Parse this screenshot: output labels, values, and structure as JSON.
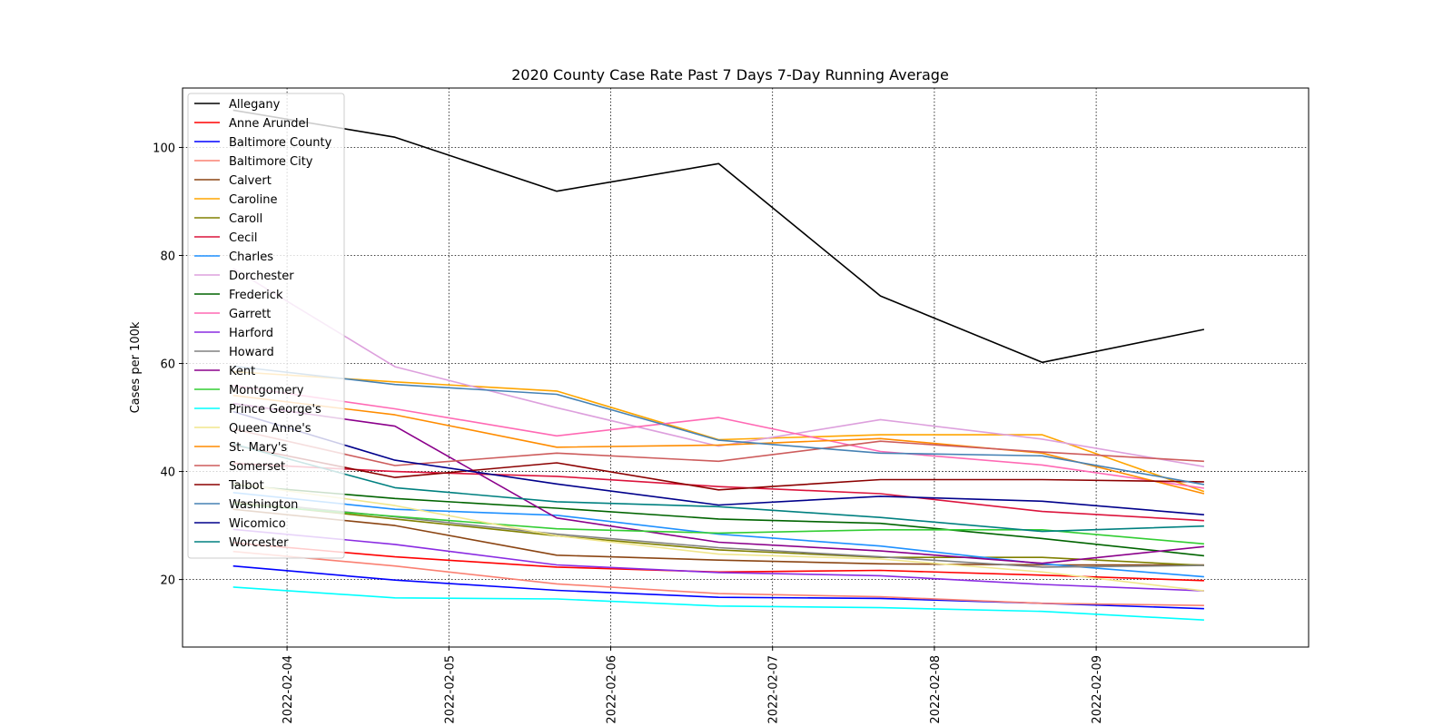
{
  "chart_data": {
    "type": "line",
    "title": "2020 County Case Rate  Past 7 Days 7-Day Running Average",
    "xlabel": "",
    "ylabel": "Cases per 100k",
    "x": [
      "2022-02-03 16:00",
      "2022-02-04 16:00",
      "2022-02-05 16:00",
      "2022-02-06 16:00",
      "2022-02-07 16:00",
      "2022-02-08 16:00",
      "2022-02-09 16:00"
    ],
    "x_ticks": [
      "2022-02-04",
      "2022-02-05",
      "2022-02-06",
      "2022-02-07",
      "2022-02-08",
      "2022-02-09"
    ],
    "xlim": [
      "2022-02-03 08:30",
      "2022-02-10 07:30"
    ],
    "y_ticks": [
      20,
      40,
      60,
      80,
      100
    ],
    "ylim": [
      7.5,
      111
    ],
    "grid": true,
    "legend_position": "upper left",
    "series": [
      {
        "name": "Allegany",
        "color": "#000000",
        "values": [
          106.9,
          101.9,
          91.9,
          97.0,
          72.5,
          60.2,
          66.3
        ]
      },
      {
        "name": "Anne Arundel",
        "color": "#ff0000",
        "values": [
          26.8,
          24.2,
          22.3,
          21.4,
          21.7,
          20.8,
          19.8
        ]
      },
      {
        "name": "Baltimore County",
        "color": "#0000ff",
        "values": [
          22.5,
          19.9,
          18.0,
          16.7,
          16.5,
          15.6,
          14.6
        ]
      },
      {
        "name": "Baltimore City",
        "color": "#fa8072",
        "values": [
          25.2,
          22.5,
          19.2,
          17.4,
          16.8,
          15.6,
          15.2
        ]
      },
      {
        "name": "Calvert",
        "color": "#8b4513",
        "values": [
          33.0,
          30.0,
          24.5,
          23.6,
          22.9,
          22.7,
          22.7
        ]
      },
      {
        "name": "Caroline",
        "color": "#ffa500",
        "values": [
          58.5,
          56.6,
          54.9,
          45.9,
          46.8,
          46.8,
          36.3
        ]
      },
      {
        "name": "Caroll",
        "color": "#808000",
        "values": [
          34.3,
          31.2,
          28.1,
          25.5,
          24.1,
          24.1,
          22.6
        ]
      },
      {
        "name": "Cecil",
        "color": "#dc143c",
        "values": [
          41.5,
          40.0,
          39.1,
          37.2,
          35.9,
          32.6,
          30.9
        ]
      },
      {
        "name": "Charles",
        "color": "#1e90ff",
        "values": [
          36.1,
          33.0,
          31.9,
          28.4,
          26.2,
          22.9,
          20.5
        ]
      },
      {
        "name": "Dorchester",
        "color": "#dda0dd",
        "values": [
          77.6,
          59.4,
          51.8,
          44.7,
          49.6,
          46.0,
          40.9
        ]
      },
      {
        "name": "Frederick",
        "color": "#006400",
        "values": [
          37.5,
          35.0,
          33.2,
          31.2,
          30.4,
          27.6,
          24.4
        ]
      },
      {
        "name": "Garrett",
        "color": "#ff69b4",
        "values": [
          55.9,
          51.6,
          46.6,
          50.0,
          43.7,
          41.2,
          36.9
        ]
      },
      {
        "name": "Harford",
        "color": "#8a2be2",
        "values": [
          29.3,
          26.5,
          22.7,
          21.3,
          20.7,
          19.1,
          17.9
        ]
      },
      {
        "name": "Howard",
        "color": "#808080",
        "values": [
          34.6,
          31.6,
          28.4,
          25.9,
          24.2,
          22.3,
          22.6
        ]
      },
      {
        "name": "Kent",
        "color": "#8b008b",
        "values": [
          52.6,
          48.4,
          31.4,
          26.9,
          25.3,
          23.0,
          26.1
        ]
      },
      {
        "name": "Montgomery",
        "color": "#32cd32",
        "values": [
          34.0,
          31.7,
          29.4,
          28.6,
          29.2,
          29.2,
          26.6
        ]
      },
      {
        "name": "Prince George's",
        "color": "#00ffff",
        "values": [
          18.6,
          16.6,
          16.4,
          15.1,
          14.8,
          14.1,
          12.5
        ]
      },
      {
        "name": "Queen Anne's",
        "color": "#f0e68c",
        "values": [
          37.8,
          33.7,
          28.1,
          24.7,
          23.8,
          21.4,
          17.9
        ]
      },
      {
        "name": "St. Mary's",
        "color": "#ff8c00",
        "values": [
          54.1,
          50.5,
          44.5,
          44.9,
          46.1,
          43.4,
          35.9
        ]
      },
      {
        "name": "Somerset",
        "color": "#cd5c5c",
        "values": [
          47.9,
          41.1,
          43.4,
          41.9,
          45.6,
          43.6,
          41.9
        ]
      },
      {
        "name": "Talbot",
        "color": "#8b0000",
        "values": [
          44.9,
          38.9,
          41.6,
          36.6,
          38.5,
          38.5,
          38.1
        ]
      },
      {
        "name": "Washington",
        "color": "#4682b4",
        "values": [
          59.5,
          56.1,
          54.3,
          45.8,
          43.4,
          42.9,
          37.6
        ]
      },
      {
        "name": "Wicomico",
        "color": "#00008b",
        "values": [
          51.1,
          42.1,
          37.7,
          33.8,
          35.4,
          34.5,
          32.0
        ]
      },
      {
        "name": "Worcester",
        "color": "#008080",
        "values": [
          45.1,
          37.0,
          34.4,
          33.5,
          31.5,
          28.9,
          29.9
        ]
      }
    ]
  }
}
